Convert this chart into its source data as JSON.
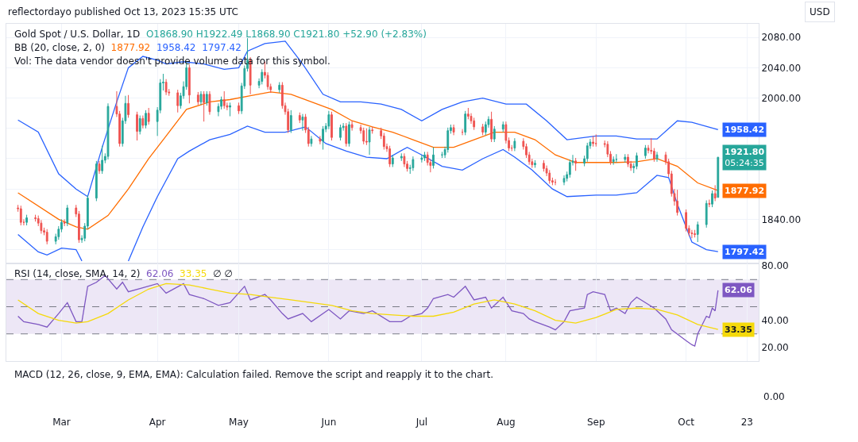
{
  "chart_data": [
    {
      "type": "candlestick",
      "title": "Gold Spot / U.S. Dollar, 1D",
      "legend_title": "BB (20, close, 2, 0)",
      "annotations": [
        "reflectordayo published Oct 13, 2023 15:35 UTC",
        "O1868.90 H1922.49 L1868.90 C1921.80 +52.90 (+2.83%)",
        "Vol: The data vendor doesn't provide volume data for this symbol.",
        "USD",
        "1921.80",
        "05:24:35"
      ],
      "x": [
        "2023-02-14",
        "2023-02-15",
        "2023-02-16",
        "2023-02-17",
        "2023-02-20",
        "2023-02-21",
        "2023-02-22",
        "2023-02-23",
        "2023-02-24",
        "2023-02-27",
        "2023-02-28",
        "2023-03-01",
        "2023-03-02",
        "2023-03-03",
        "2023-03-06",
        "2023-03-07",
        "2023-03-08",
        "2023-03-09",
        "2023-03-10",
        "2023-03-13",
        "2023-03-14",
        "2023-03-15",
        "2023-03-16",
        "2023-03-17",
        "2023-03-20",
        "2023-03-21",
        "2023-03-22",
        "2023-03-23",
        "2023-03-24",
        "2023-03-27",
        "2023-03-28",
        "2023-03-29",
        "2023-03-30",
        "2023-03-31",
        "2023-04-03",
        "2023-04-04",
        "2023-04-05",
        "2023-04-06",
        "2023-04-07",
        "2023-04-10",
        "2023-04-11",
        "2023-04-12",
        "2023-04-13",
        "2023-04-14",
        "2023-04-17",
        "2023-04-18",
        "2023-04-19",
        "2023-04-20",
        "2023-04-21",
        "2023-04-24",
        "2023-04-25",
        "2023-04-26",
        "2023-04-27",
        "2023-04-28",
        "2023-05-01",
        "2023-05-02",
        "2023-05-03",
        "2023-05-04",
        "2023-05-05",
        "2023-05-08",
        "2023-05-09",
        "2023-05-10",
        "2023-05-11",
        "2023-05-12",
        "2023-05-15",
        "2023-05-16",
        "2023-05-17",
        "2023-05-18",
        "2023-05-19",
        "2023-05-22",
        "2023-05-23",
        "2023-05-24",
        "2023-05-25",
        "2023-05-26",
        "2023-05-29",
        "2023-05-30",
        "2023-05-31",
        "2023-06-01",
        "2023-06-02",
        "2023-06-05",
        "2023-06-06",
        "2023-06-07",
        "2023-06-08",
        "2023-06-09",
        "2023-06-12",
        "2023-06-13",
        "2023-06-14",
        "2023-06-15",
        "2023-06-16",
        "2023-06-19",
        "2023-06-20",
        "2023-06-21",
        "2023-06-22",
        "2023-06-23",
        "2023-06-26",
        "2023-06-27",
        "2023-06-28",
        "2023-06-29",
        "2023-06-30",
        "2023-07-03",
        "2023-07-04",
        "2023-07-05",
        "2023-07-06",
        "2023-07-07",
        "2023-07-10",
        "2023-07-11",
        "2023-07-12",
        "2023-07-13",
        "2023-07-14",
        "2023-07-17",
        "2023-07-18",
        "2023-07-19",
        "2023-07-20",
        "2023-07-21",
        "2023-07-24",
        "2023-07-25",
        "2023-07-26",
        "2023-07-27",
        "2023-07-28",
        "2023-07-31",
        "2023-08-01",
        "2023-08-02",
        "2023-08-03",
        "2023-08-04",
        "2023-08-07",
        "2023-08-08",
        "2023-08-09",
        "2023-08-10",
        "2023-08-11",
        "2023-08-14",
        "2023-08-15",
        "2023-08-16",
        "2023-08-17",
        "2023-08-18",
        "2023-08-21",
        "2023-08-22",
        "2023-08-23",
        "2023-08-24",
        "2023-08-25",
        "2023-08-28",
        "2023-08-29",
        "2023-08-30",
        "2023-08-31",
        "2023-09-01",
        "2023-09-04",
        "2023-09-05",
        "2023-09-06",
        "2023-09-07",
        "2023-09-08",
        "2023-09-11",
        "2023-09-12",
        "2023-09-13",
        "2023-09-14",
        "2023-09-15",
        "2023-09-18",
        "2023-09-19",
        "2023-09-20",
        "2023-09-21",
        "2023-09-22",
        "2023-09-25",
        "2023-09-26",
        "2023-09-27",
        "2023-09-28",
        "2023-09-29",
        "2023-10-02",
        "2023-10-03",
        "2023-10-04",
        "2023-10-05",
        "2023-10-06",
        "2023-10-09",
        "2023-10-10",
        "2023-10-11",
        "2023-10-12",
        "2023-10-13"
      ],
      "ohlc": [
        [
          1855,
          1859,
          1850,
          1854
        ],
        [
          1854,
          1858,
          1832,
          1836
        ],
        [
          1836,
          1840,
          1832,
          1836
        ],
        [
          1836,
          1846,
          1832,
          1842
        ],
        [
          1842,
          1846,
          1837,
          1841
        ],
        [
          1841,
          1845,
          1831,
          1835
        ],
        [
          1835,
          1839,
          1821,
          1825
        ],
        [
          1825,
          1829,
          1819,
          1823
        ],
        [
          1823,
          1827,
          1807,
          1811
        ],
        [
          1811,
          1821,
          1807,
          1817
        ],
        [
          1817,
          1831,
          1813,
          1827
        ],
        [
          1827,
          1840,
          1823,
          1836
        ],
        [
          1836,
          1840,
          1831,
          1835
        ],
        [
          1835,
          1859,
          1831,
          1855
        ],
        [
          1855,
          1859,
          1843,
          1847
        ],
        [
          1847,
          1851,
          1809,
          1813
        ],
        [
          1813,
          1819,
          1809,
          1815
        ],
        [
          1815,
          1835,
          1811,
          1831
        ],
        [
          1831,
          1872,
          1827,
          1868
        ],
        [
          1868,
          1917,
          1864,
          1913
        ],
        [
          1913,
          1917,
          1900,
          1904
        ],
        [
          1904,
          1937,
          1900,
          1918
        ],
        [
          1918,
          1927,
          1914,
          1923
        ],
        [
          1923,
          1993,
          1919,
          1989
        ],
        [
          1989,
          2009,
          1975,
          1979
        ],
        [
          1979,
          1983,
          1936,
          1940
        ],
        [
          1940,
          1974,
          1936,
          1970
        ],
        [
          1970,
          2003,
          1966,
          1993
        ],
        [
          1993,
          2004,
          1974,
          1978
        ],
        [
          1978,
          1982,
          1944,
          1956
        ],
        [
          1956,
          1977,
          1952,
          1973
        ],
        [
          1973,
          1977,
          1960,
          1964
        ],
        [
          1964,
          1984,
          1960,
          1980
        ],
        [
          1980,
          1987,
          1965,
          1969
        ],
        [
          1969,
          1988,
          1950,
          1984
        ],
        [
          1984,
          2025,
          1980,
          2020
        ],
        [
          2020,
          2032,
          2010,
          2021
        ],
        [
          2021,
          2025,
          2004,
          2008
        ],
        [
          2008,
          2012,
          2003,
          2007
        ],
        [
          2007,
          2011,
          1981,
          1990
        ],
        [
          1990,
          2007,
          1986,
          2003
        ],
        [
          2003,
          2022,
          1999,
          2015
        ],
        [
          2015,
          2048,
          2011,
          2040
        ],
        [
          2040,
          2044,
          1993,
          2004
        ],
        [
          2004,
          2008,
          1991,
          1995
        ],
        [
          1995,
          2009,
          1991,
          2005
        ],
        [
          2005,
          2009,
          1969,
          1994
        ],
        [
          1994,
          2009,
          1990,
          2005
        ],
        [
          2005,
          2009,
          1978,
          1982
        ],
        [
          1982,
          1993,
          1976,
          1989
        ],
        [
          1989,
          2002,
          1985,
          1998
        ],
        [
          1998,
          2009,
          1986,
          1990
        ],
        [
          1990,
          1994,
          1984,
          1988
        ],
        [
          1988,
          1994,
          1976,
          1990
        ],
        [
          1990,
          1994,
          1979,
          1983
        ],
        [
          1983,
          2020,
          1979,
          2016
        ],
        [
          2016,
          2043,
          2012,
          2039
        ],
        [
          2039,
          2079,
          2035,
          2050
        ],
        [
          2050,
          2054,
          2005,
          2017
        ],
        [
          2017,
          2026,
          2013,
          2022
        ],
        [
          2022,
          2038,
          2018,
          2034
        ],
        [
          2034,
          2048,
          2026,
          2030
        ],
        [
          2030,
          2034,
          2011,
          2015
        ],
        [
          2015,
          2019,
          2007,
          2011
        ],
        [
          2011,
          2021,
          2007,
          2017
        ],
        [
          2017,
          2021,
          1986,
          1990
        ],
        [
          1990,
          1994,
          1978,
          1982
        ],
        [
          1982,
          1986,
          1954,
          1958
        ],
        [
          1958,
          1984,
          1954,
          1977
        ],
        [
          1977,
          1981,
          1967,
          1971
        ],
        [
          1971,
          1979,
          1957,
          1975
        ],
        [
          1975,
          1979,
          1954,
          1958
        ],
        [
          1958,
          1962,
          1936,
          1940
        ],
        [
          1940,
          1950,
          1936,
          1946
        ],
        [
          1946,
          1950,
          1939,
          1943
        ],
        [
          1943,
          1963,
          1932,
          1959
        ],
        [
          1959,
          1967,
          1955,
          1963
        ],
        [
          1963,
          1983,
          1959,
          1978
        ],
        [
          1978,
          1982,
          1944,
          1948
        ],
        [
          1948,
          1965,
          1944,
          1961
        ],
        [
          1961,
          1967,
          1957,
          1963
        ],
        [
          1963,
          1967,
          1936,
          1940
        ],
        [
          1940,
          1969,
          1936,
          1965
        ],
        [
          1965,
          1970,
          1957,
          1961
        ],
        [
          1961,
          1965,
          1953,
          1957
        ],
        [
          1957,
          1961,
          1939,
          1943
        ],
        [
          1943,
          1960,
          1938,
          1942
        ],
        [
          1942,
          1962,
          1925,
          1958
        ],
        [
          1958,
          1962,
          1953,
          1957
        ],
        [
          1957,
          1961,
          1946,
          1950
        ],
        [
          1950,
          1954,
          1932,
          1936
        ],
        [
          1936,
          1940,
          1929,
          1933
        ],
        [
          1933,
          1937,
          1909,
          1913
        ],
        [
          1913,
          1925,
          1909,
          1921
        ],
        [
          1921,
          1927,
          1917,
          1923
        ],
        [
          1923,
          1927,
          1909,
          1913
        ],
        [
          1913,
          1917,
          1903,
          1907
        ],
        [
          1907,
          1912,
          1900,
          1908
        ],
        [
          1908,
          1923,
          1904,
          1919
        ],
        [
          1919,
          1925,
          1915,
          1921
        ],
        [
          1921,
          1929,
          1917,
          1925
        ],
        [
          1925,
          1929,
          1911,
          1915
        ],
        [
          1915,
          1919,
          1902,
          1911
        ],
        [
          1911,
          1935,
          1907,
          1925
        ],
        [
          1925,
          1929,
          1921,
          1925
        ],
        [
          1925,
          1936,
          1921,
          1932
        ],
        [
          1932,
          1961,
          1928,
          1957
        ],
        [
          1957,
          1965,
          1953,
          1961
        ],
        [
          1961,
          1965,
          1951,
          1955
        ],
        [
          1955,
          1959,
          1951,
          1955
        ],
        [
          1955,
          1983,
          1951,
          1979
        ],
        [
          1979,
          1987,
          1972,
          1976
        ],
        [
          1976,
          1980,
          1966,
          1970
        ],
        [
          1970,
          1974,
          1958,
          1962
        ],
        [
          1962,
          1966,
          1951,
          1955
        ],
        [
          1955,
          1969,
          1951,
          1965
        ],
        [
          1965,
          1976,
          1961,
          1972
        ],
        [
          1972,
          1982,
          1942,
          1946
        ],
        [
          1946,
          1963,
          1942,
          1959
        ],
        [
          1959,
          1969,
          1955,
          1965
        ],
        [
          1965,
          1969,
          1940,
          1944
        ],
        [
          1944,
          1948,
          1930,
          1934
        ],
        [
          1934,
          1938,
          1930,
          1934
        ],
        [
          1934,
          1947,
          1930,
          1943
        ],
        [
          1943,
          1947,
          1932,
          1936
        ],
        [
          1936,
          1940,
          1921,
          1925
        ],
        [
          1925,
          1929,
          1912,
          1916
        ],
        [
          1916,
          1920,
          1908,
          1912
        ],
        [
          1912,
          1918,
          1908,
          1914
        ],
        [
          1914,
          1918,
          1903,
          1907
        ],
        [
          1907,
          1911,
          1897,
          1901
        ],
        [
          1901,
          1905,
          1887,
          1891
        ],
        [
          1891,
          1895,
          1885,
          1889
        ],
        [
          1889,
          1893,
          1885,
          1889
        ],
        [
          1889,
          1898,
          1885,
          1894
        ],
        [
          1894,
          1903,
          1890,
          1899
        ],
        [
          1899,
          1919,
          1895,
          1915
        ],
        [
          1915,
          1925,
          1911,
          1917
        ],
        [
          1917,
          1921,
          1904,
          1914
        ],
        [
          1914,
          1924,
          1910,
          1920
        ],
        [
          1920,
          1941,
          1916,
          1937
        ],
        [
          1937,
          1946,
          1933,
          1942
        ],
        [
          1942,
          1950,
          1936,
          1940
        ],
        [
          1940,
          1952,
          1936,
          1940
        ],
        [
          1940,
          1944,
          1935,
          1939
        ],
        [
          1939,
          1943,
          1922,
          1926
        ],
        [
          1926,
          1930,
          1912,
          1916
        ],
        [
          1916,
          1923,
          1912,
          1919
        ],
        [
          1919,
          1926,
          1915,
          1919
        ],
        [
          1919,
          1926,
          1915,
          1922
        ],
        [
          1922,
          1926,
          1909,
          1913
        ],
        [
          1913,
          1917,
          1904,
          1908
        ],
        [
          1908,
          1914,
          1901,
          1910
        ],
        [
          1910,
          1928,
          1906,
          1924
        ],
        [
          1924,
          1938,
          1920,
          1934
        ],
        [
          1934,
          1938,
          1927,
          1931
        ],
        [
          1931,
          1947,
          1926,
          1930
        ],
        [
          1930,
          1934,
          1916,
          1920
        ],
        [
          1920,
          1929,
          1916,
          1925
        ],
        [
          1925,
          1929,
          1912,
          1916
        ],
        [
          1916,
          1920,
          1896,
          1900
        ],
        [
          1900,
          1904,
          1870,
          1874
        ],
        [
          1874,
          1880,
          1858,
          1864
        ],
        [
          1864,
          1879,
          1845,
          1849
        ],
        [
          1849,
          1853,
          1824,
          1828
        ],
        [
          1828,
          1832,
          1818,
          1822
        ],
        [
          1822,
          1826,
          1815,
          1821
        ],
        [
          1821,
          1826,
          1816,
          1820
        ],
        [
          1820,
          1837,
          1810,
          1833
        ],
        [
          1833,
          1865,
          1829,
          1861
        ],
        [
          1861,
          1866,
          1856,
          1860
        ],
        [
          1860,
          1878,
          1856,
          1874
        ],
        [
          1874,
          1885,
          1864,
          1868
        ],
        [
          1868.9,
          1922.49,
          1868.9,
          1921.8
        ]
      ],
      "series": [
        {
          "type": "line",
          "color": "#ff6d00",
          "x": [
            "2023-02-14",
            "2023-02-28",
            "2023-03-06",
            "2023-03-10",
            "2023-03-17",
            "2023-03-24",
            "2023-03-31",
            "2023-04-06",
            "2023-04-13",
            "2023-04-21",
            "2023-04-28",
            "2023-05-05",
            "2023-05-12",
            "2023-05-19",
            "2023-05-26",
            "2023-06-02",
            "2023-06-09",
            "2023-06-16",
            "2023-06-23",
            "2023-06-30",
            "2023-07-07",
            "2023-07-14",
            "2023-07-21",
            "2023-07-28",
            "2023-08-04",
            "2023-08-11",
            "2023-08-18",
            "2023-08-25",
            "2023-09-01",
            "2023-09-08",
            "2023-09-15",
            "2023-09-22",
            "2023-09-29",
            "2023-10-06",
            "2023-10-13"
          ],
          "values": [
            1875,
            1840,
            1830,
            1827,
            1845,
            1880,
            1920,
            1950,
            1985,
            1995,
            1998,
            2003,
            2008,
            2005,
            1995,
            1985,
            1970,
            1962,
            1955,
            1945,
            1935,
            1935,
            1945,
            1955,
            1955,
            1945,
            1925,
            1915,
            1915,
            1915,
            1916,
            1920,
            1910,
            1888,
            1877.92
          ],
          "value_labels": [
            null,
            null,
            null,
            null,
            null,
            null,
            null,
            null,
            null,
            null,
            null,
            null,
            null,
            null,
            null,
            null,
            null,
            null,
            null,
            null,
            null,
            null,
            null,
            null,
            null,
            null,
            null,
            null,
            null,
            null,
            null,
            null,
            null,
            null,
            "1877.92"
          ]
        },
        {
          "type": "line",
          "color": "#2962ff",
          "x": [
            "2023-02-14",
            "2023-02-21",
            "2023-02-28",
            "2023-03-06",
            "2023-03-10",
            "2023-03-15",
            "2023-03-20",
            "2023-03-24",
            "2023-03-29",
            "2023-04-03",
            "2023-04-06",
            "2023-04-12",
            "2023-04-19",
            "2023-04-26",
            "2023-05-01",
            "2023-05-04",
            "2023-05-10",
            "2023-05-17",
            "2023-05-23",
            "2023-05-30",
            "2023-06-05",
            "2023-06-12",
            "2023-06-19",
            "2023-06-26",
            "2023-07-03",
            "2023-07-10",
            "2023-07-17",
            "2023-07-24",
            "2023-08-01",
            "2023-08-08",
            "2023-08-15",
            "2023-08-22",
            "2023-09-01",
            "2023-09-08",
            "2023-09-15",
            "2023-09-22",
            "2023-09-29",
            "2023-10-04",
            "2023-10-13"
          ],
          "values": [
            1971,
            1955,
            1900,
            1880,
            1870,
            1935,
            1995,
            2040,
            2055,
            2050,
            2045,
            2048,
            2045,
            2038,
            2040,
            2062,
            2072,
            2075,
            2045,
            2005,
            1995,
            1995,
            1992,
            1985,
            1970,
            1985,
            1995,
            2000,
            1992,
            1992,
            1970,
            1945,
            1950,
            1950,
            1946,
            1946,
            1970,
            1968,
            1958.42
          ],
          "value_labels": [
            null,
            null,
            null,
            null,
            null,
            null,
            null,
            null,
            null,
            null,
            null,
            null,
            null,
            null,
            null,
            null,
            null,
            null,
            null,
            null,
            null,
            null,
            null,
            null,
            null,
            null,
            null,
            null,
            null,
            null,
            null,
            null,
            null,
            null,
            null,
            null,
            null,
            null,
            "1958.42"
          ]
        },
        {
          "type": "line",
          "color": "#2962ff",
          "x": [
            "2023-02-14",
            "2023-02-21",
            "2023-02-24",
            "2023-03-01",
            "2023-03-06",
            "2023-03-08",
            "2023-03-10",
            "2023-03-15",
            "2023-03-20",
            "2023-03-24",
            "2023-03-29",
            "2023-04-03",
            "2023-04-10",
            "2023-04-14",
            "2023-04-21",
            "2023-04-28",
            "2023-05-04",
            "2023-05-10",
            "2023-05-17",
            "2023-05-24",
            "2023-05-31",
            "2023-06-07",
            "2023-06-14",
            "2023-06-21",
            "2023-06-28",
            "2023-07-03",
            "2023-07-10",
            "2023-07-17",
            "2023-07-24",
            "2023-07-31",
            "2023-08-04",
            "2023-08-10",
            "2023-08-17",
            "2023-08-22",
            "2023-09-01",
            "2023-09-08",
            "2023-09-15",
            "2023-09-22",
            "2023-09-26",
            "2023-09-29",
            "2023-10-04",
            "2023-10-09",
            "2023-10-13"
          ],
          "values": [
            1820,
            1797,
            1793,
            1802,
            1800,
            1785,
            null,
            null,
            null,
            1785,
            1830,
            1870,
            1920,
            1930,
            1945,
            1952,
            1963,
            1955,
            1955,
            1962,
            1940,
            1930,
            1922,
            1920,
            1935,
            1925,
            1910,
            1905,
            1920,
            1932,
            1922,
            1905,
            1880,
            1870,
            1872,
            1872,
            1875,
            1898,
            1895,
            1860,
            1810,
            1800,
            1797.42
          ],
          "value_labels": [
            null,
            null,
            null,
            null,
            null,
            null,
            null,
            null,
            null,
            null,
            null,
            null,
            null,
            null,
            null,
            null,
            null,
            null,
            null,
            null,
            null,
            null,
            null,
            null,
            null,
            null,
            null,
            null,
            null,
            null,
            null,
            null,
            null,
            null,
            null,
            null,
            null,
            null,
            null,
            null,
            null,
            null,
            "1797.42"
          ]
        }
      ],
      "xlim": [
        "2023-02-10",
        "2023-10-27"
      ],
      "ylim": [
        1782,
        2098
      ],
      "yticks": [
        {
          "value": 1800,
          "label": null
        },
        {
          "value": 1840,
          "label": "1840.00"
        },
        {
          "value": 1880,
          "label": null
        },
        {
          "value": 1920,
          "label": null
        },
        {
          "value": 1960,
          "label": null
        },
        {
          "value": 2000,
          "label": "2000.00"
        },
        {
          "value": 2040,
          "label": "2040.00"
        },
        {
          "value": 2080,
          "label": "2080.00"
        }
      ],
      "grid": true,
      "tick_labels": "y"
    },
    {
      "type": "line",
      "title": "RSI (14, close, SMA, 14, 2)",
      "annotations": [
        "∅ ∅",
        "MACD (12, 26, close, 9, EMA, EMA): Calculation failed. Remove the script and reapply it to the chart.",
        "0.00"
      ],
      "series": [
        {
          "color": "#7e57c2",
          "x": [
            "2023-02-14",
            "2023-02-16",
            "2023-02-21",
            "2023-02-24",
            "2023-02-28",
            "2023-03-03",
            "2023-03-06",
            "2023-03-08",
            "2023-03-10",
            "2023-03-13",
            "2023-03-16",
            "2023-03-20",
            "2023-03-22",
            "2023-03-24",
            "2023-03-29",
            "2023-04-03",
            "2023-04-06",
            "2023-04-12",
            "2023-04-14",
            "2023-04-19",
            "2023-04-24",
            "2023-04-28",
            "2023-05-03",
            "2023-05-05",
            "2023-05-10",
            "2023-05-12",
            "2023-05-16",
            "2023-05-18",
            "2023-05-23",
            "2023-05-26",
            "2023-06-01",
            "2023-06-05",
            "2023-06-08",
            "2023-06-13",
            "2023-06-16",
            "2023-06-22",
            "2023-06-26",
            "2023-06-29",
            "2023-07-03",
            "2023-07-05",
            "2023-07-07",
            "2023-07-12",
            "2023-07-14",
            "2023-07-18",
            "2023-07-21",
            "2023-07-25",
            "2023-07-27",
            "2023-07-31",
            "2023-08-03",
            "2023-08-07",
            "2023-08-09",
            "2023-08-11",
            "2023-08-16",
            "2023-08-18",
            "2023-08-21",
            "2023-08-23",
            "2023-08-28",
            "2023-08-29",
            "2023-08-31",
            "2023-09-04",
            "2023-09-06",
            "2023-09-08",
            "2023-09-11",
            "2023-09-13",
            "2023-09-15",
            "2023-09-21",
            "2023-09-25",
            "2023-09-27",
            "2023-10-02",
            "2023-10-04",
            "2023-10-05",
            "2023-10-06",
            "2023-10-09",
            "2023-10-10",
            "2023-10-11",
            "2023-10-12",
            "2023-10-13"
          ],
          "values": [
            43,
            39,
            37,
            35,
            45,
            53,
            39,
            39,
            65,
            68,
            73,
            63,
            68,
            61,
            64,
            67,
            60,
            67,
            59,
            56,
            51,
            53,
            65,
            55,
            59,
            55,
            45,
            41,
            45,
            39,
            48,
            41,
            47,
            45,
            47,
            39,
            39,
            43,
            45,
            49,
            56,
            59,
            57,
            65,
            55,
            57,
            49,
            57,
            47,
            45,
            41,
            39,
            35,
            33,
            39,
            47,
            49,
            59,
            61,
            59,
            47,
            49,
            45,
            53,
            57,
            49,
            41,
            33,
            25,
            22,
            21,
            30,
            43,
            42,
            49,
            47,
            62.06
          ],
          "value_labels": [
            null,
            null,
            null,
            null,
            null,
            null,
            null,
            null,
            null,
            null,
            null,
            null,
            null,
            null,
            null,
            null,
            null,
            null,
            null,
            null,
            null,
            null,
            null,
            null,
            null,
            null,
            null,
            null,
            null,
            null,
            null,
            null,
            null,
            null,
            null,
            null,
            null,
            null,
            null,
            null,
            null,
            null,
            null,
            null,
            null,
            null,
            null,
            null,
            null,
            null,
            null,
            null,
            null,
            null,
            null,
            null,
            null,
            null,
            null,
            null,
            null,
            null,
            null,
            null,
            null,
            null,
            null,
            null,
            null,
            null,
            null,
            null,
            null,
            null,
            null,
            null,
            "62.06"
          ]
        },
        {
          "color": "#f5d90a",
          "x": [
            "2023-02-14",
            "2023-02-21",
            "2023-02-28",
            "2023-03-06",
            "2023-03-10",
            "2023-03-17",
            "2023-03-24",
            "2023-03-31",
            "2023-04-06",
            "2023-04-14",
            "2023-04-21",
            "2023-04-28",
            "2023-05-05",
            "2023-05-12",
            "2023-05-19",
            "2023-05-26",
            "2023-06-02",
            "2023-06-09",
            "2023-06-16",
            "2023-06-23",
            "2023-06-30",
            "2023-07-07",
            "2023-07-14",
            "2023-07-21",
            "2023-07-28",
            "2023-08-04",
            "2023-08-11",
            "2023-08-18",
            "2023-08-25",
            "2023-09-01",
            "2023-09-08",
            "2023-09-15",
            "2023-09-22",
            "2023-09-29",
            "2023-10-06",
            "2023-10-13"
          ],
          "values": [
            55,
            45,
            40,
            38,
            39,
            45,
            55,
            63,
            67,
            66,
            63,
            60,
            59,
            57,
            55,
            53,
            51,
            47,
            45,
            44,
            43,
            43,
            46,
            52,
            55,
            52,
            47,
            40,
            38,
            42,
            48,
            49,
            48,
            44,
            37,
            33.35
          ],
          "value_labels": [
            null,
            null,
            null,
            null,
            null,
            null,
            null,
            null,
            null,
            null,
            null,
            null,
            null,
            null,
            null,
            null,
            null,
            null,
            null,
            null,
            null,
            null,
            null,
            null,
            null,
            null,
            null,
            null,
            null,
            null,
            null,
            null,
            null,
            null,
            null,
            "33.35"
          ]
        }
      ],
      "ref_lines": [
        {
          "axis": "y",
          "value": 70,
          "color": "#787b86",
          "line_style": "dashed"
        },
        {
          "axis": "y",
          "value": 50,
          "color": "#787b86",
          "line_style": "dashed"
        },
        {
          "axis": "y",
          "value": 30,
          "color": "#787b86",
          "line_style": "dashed"
        }
      ],
      "bands": [
        {
          "axis": "y",
          "from": 30,
          "to": 70,
          "color": "#ede7f6"
        }
      ],
      "xlim": [
        "2023-02-10",
        "2023-10-27"
      ],
      "ylim": [
        10,
        82
      ],
      "yticks": [
        {
          "value": 20,
          "label": "20.00"
        },
        {
          "value": 40,
          "label": "40.00"
        },
        {
          "value": 80,
          "label": "80.00"
        }
      ],
      "grid": "x",
      "xticks": [
        {
          "value": "2023-03-01",
          "label": "Mar"
        },
        {
          "value": "2023-04-03",
          "label": "Apr"
        },
        {
          "value": "2023-05-01",
          "label": "May"
        },
        {
          "value": "2023-06-01",
          "label": "Jun"
        },
        {
          "value": "2023-07-03",
          "label": "Jul"
        },
        {
          "value": "2023-08-01",
          "label": "Aug"
        },
        {
          "value": "2023-09-01",
          "label": "Sep"
        },
        {
          "value": "2023-10-02",
          "label": "Oct"
        },
        {
          "value": "2023-10-23",
          "label": "23"
        }
      ]
    }
  ]
}
